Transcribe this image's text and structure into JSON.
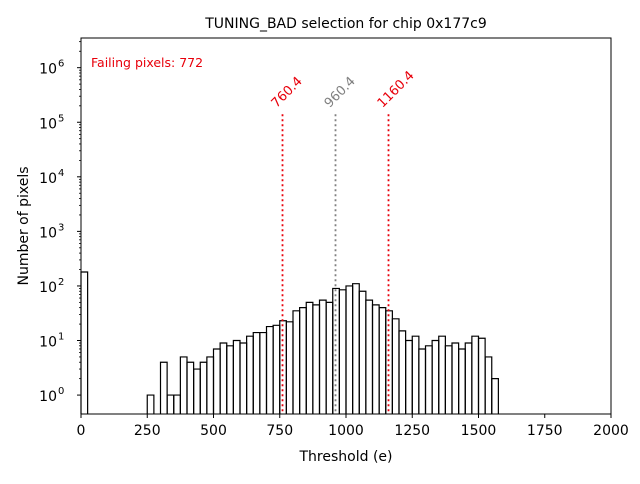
{
  "chart_data": {
    "type": "histogram",
    "title": "TUNING_BAD selection for chip 0x177c9",
    "xlabel": "Threshold (e)",
    "ylabel": "Number of pixels",
    "xlim": [
      0,
      2000
    ],
    "ylim": [
      0.45,
      3500000
    ],
    "yscale": "log",
    "bin_width": 25,
    "xticks": [
      0,
      250,
      500,
      750,
      1000,
      1250,
      1500,
      1750,
      2000
    ],
    "xtick_labels": [
      "0",
      "250",
      "500",
      "750",
      "1000",
      "1250",
      "1500",
      "1750",
      "2000"
    ],
    "yticks": [
      1,
      10,
      100,
      1000,
      10000,
      100000,
      1000000
    ],
    "ytick_labels": [
      {
        "base": "10",
        "exp": "0"
      },
      {
        "base": "10",
        "exp": "1"
      },
      {
        "base": "10",
        "exp": "2"
      },
      {
        "base": "10",
        "exp": "3"
      },
      {
        "base": "10",
        "exp": "4"
      },
      {
        "base": "10",
        "exp": "5"
      },
      {
        "base": "10",
        "exp": "6"
      }
    ],
    "bins": [
      [
        0,
        180
      ],
      [
        25,
        0
      ],
      [
        50,
        0
      ],
      [
        75,
        0
      ],
      [
        100,
        0
      ],
      [
        125,
        0
      ],
      [
        150,
        0
      ],
      [
        175,
        0
      ],
      [
        200,
        0
      ],
      [
        225,
        0
      ],
      [
        250,
        1
      ],
      [
        275,
        0
      ],
      [
        300,
        4
      ],
      [
        325,
        1
      ],
      [
        350,
        1
      ],
      [
        375,
        5
      ],
      [
        400,
        4
      ],
      [
        425,
        3
      ],
      [
        450,
        4
      ],
      [
        475,
        5
      ],
      [
        500,
        7
      ],
      [
        525,
        9
      ],
      [
        550,
        8
      ],
      [
        575,
        10
      ],
      [
        600,
        9
      ],
      [
        625,
        12
      ],
      [
        650,
        14
      ],
      [
        675,
        14
      ],
      [
        700,
        18
      ],
      [
        725,
        19
      ],
      [
        750,
        23
      ],
      [
        775,
        22
      ],
      [
        800,
        35
      ],
      [
        825,
        40
      ],
      [
        850,
        50
      ],
      [
        875,
        45
      ],
      [
        900,
        55
      ],
      [
        925,
        50
      ],
      [
        950,
        90
      ],
      [
        975,
        85
      ],
      [
        1000,
        100
      ],
      [
        1025,
        110
      ],
      [
        1050,
        80
      ],
      [
        1075,
        55
      ],
      [
        1100,
        45
      ],
      [
        1125,
        40
      ],
      [
        1150,
        35
      ],
      [
        1175,
        25
      ],
      [
        1200,
        15
      ],
      [
        1225,
        10
      ],
      [
        1250,
        12
      ],
      [
        1275,
        7
      ],
      [
        1300,
        8
      ],
      [
        1325,
        10
      ],
      [
        1350,
        12
      ],
      [
        1375,
        8
      ],
      [
        1400,
        9
      ],
      [
        1425,
        7
      ],
      [
        1450,
        9
      ],
      [
        1475,
        12
      ],
      [
        1500,
        11
      ],
      [
        1525,
        5
      ],
      [
        1550,
        2
      ]
    ],
    "vlines": [
      {
        "x": 760.4,
        "label": "760.4",
        "color": "#e8000b"
      },
      {
        "x": 960.4,
        "label": "960.4",
        "color": "#808080"
      },
      {
        "x": 1160.4,
        "label": "1160.4",
        "color": "#e8000b"
      }
    ],
    "annotation": {
      "text": "Failing pixels: 772",
      "color": "#e8000b"
    }
  }
}
